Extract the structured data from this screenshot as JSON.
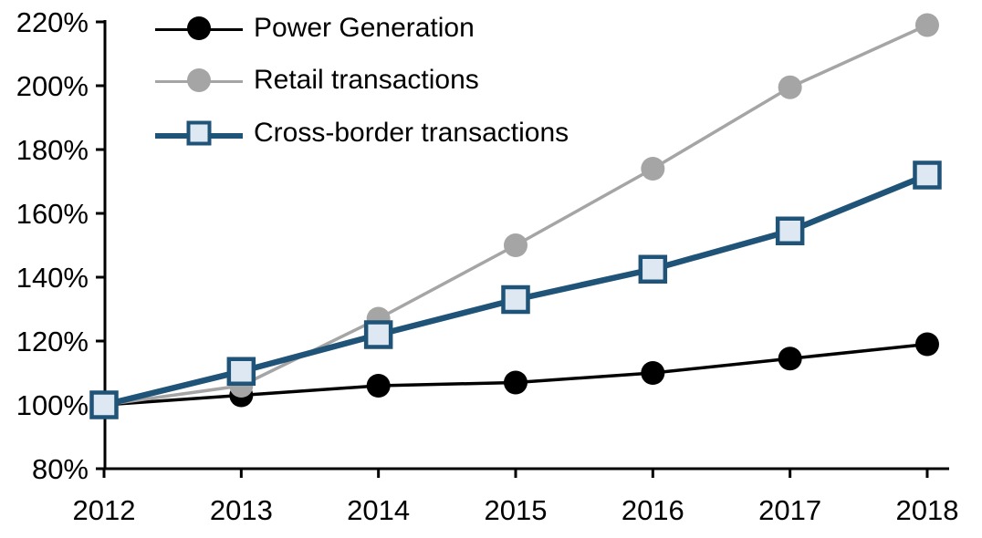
{
  "chart_data": {
    "type": "line",
    "title": "",
    "xlabel": "",
    "ylabel": "",
    "x": [
      2012,
      2013,
      2014,
      2015,
      2016,
      2017,
      2018
    ],
    "xtick_labels": [
      "2012",
      "2013",
      "2014",
      "2015",
      "2016",
      "2017",
      "2018"
    ],
    "ylim": [
      80,
      220
    ],
    "ytick_step": 20,
    "ytick_labels": [
      "80%",
      "100%",
      "120%",
      "140%",
      "160%",
      "180%",
      "200%",
      "220%"
    ],
    "grid": false,
    "legend_position": "top-left",
    "axis_color": "#000000",
    "series": [
      {
        "name": "Power Generation",
        "values": [
          100,
          103,
          106,
          107,
          110,
          114.5,
          119
        ],
        "color": "#000000",
        "marker": "circle",
        "marker_fill": "#000000",
        "line_width": 3.5
      },
      {
        "name": "Retail transactions",
        "values": [
          100,
          106,
          127,
          150,
          174,
          199.5,
          219
        ],
        "color": "#A5A5A5",
        "marker": "circle",
        "marker_fill": "#A5A5A5",
        "line_width": 3.5
      },
      {
        "name": "Cross-border transactions",
        "values": [
          100,
          110.5,
          122,
          133,
          142.5,
          154.5,
          172
        ],
        "color": "#1F5377",
        "marker": "square",
        "marker_fill": "#DDE8F3",
        "line_width": 6.5
      }
    ]
  },
  "legend": {
    "items": [
      {
        "label": "Power Generation"
      },
      {
        "label": "Retail transactions"
      },
      {
        "label": "Cross-border transactions"
      }
    ]
  }
}
